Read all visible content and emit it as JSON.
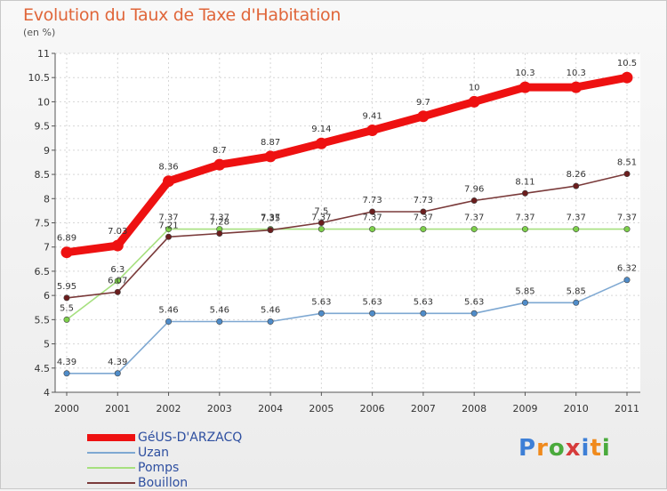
{
  "title": "Evolution du Taux de Taxe d'Habitation",
  "unit": "(en %)",
  "brand": {
    "text": "Proxiti",
    "letter_colors": [
      "#3d7fd6",
      "#f08a1c",
      "#4aaa3c",
      "#d63b3b",
      "#3d7fd6",
      "#f08a1c",
      "#4aaa3c"
    ]
  },
  "chart_data": {
    "type": "line",
    "x": [
      "2000",
      "2001",
      "2002",
      "2003",
      "2004",
      "2005",
      "2006",
      "2007",
      "2008",
      "2009",
      "2010",
      "2011"
    ],
    "ylim": [
      4,
      11
    ],
    "yticks": [
      "4",
      "4.5",
      "5",
      "5.5",
      "6",
      "6.5",
      "7",
      "7.5",
      "8",
      "8.5",
      "9",
      "9.5",
      "10",
      "10.5",
      "11"
    ],
    "grid": true,
    "legend_position": "bottom-left",
    "series": [
      {
        "name": "GéUS-D'ARZACQ",
        "color": "#ee1111",
        "values": [
          6.89,
          7.03,
          8.36,
          8.7,
          8.87,
          9.14,
          9.41,
          9.7,
          10,
          10.3,
          10.3,
          10.5
        ],
        "labels": [
          "6.89",
          "7.03",
          "8.36",
          "8.7",
          "8.87",
          "9.14",
          "9.41",
          "9.7",
          "10",
          "10.3",
          "10.3",
          "10.5"
        ]
      },
      {
        "name": "Uzan",
        "color": "#6c9fcf",
        "values": [
          4.39,
          4.39,
          5.46,
          5.46,
          5.46,
          5.63,
          5.63,
          5.63,
          5.63,
          5.85,
          5.85,
          6.32
        ],
        "labels": [
          "4.39",
          "4.39",
          "5.46",
          "5.46",
          "5.46",
          "5.63",
          "5.63",
          "5.63",
          "5.63",
          "5.85",
          "5.85",
          "6.32"
        ]
      },
      {
        "name": "Pomps",
        "color": "#93d86e",
        "values": [
          5.5,
          6.3,
          7.37,
          7.37,
          7.37,
          7.37,
          7.37,
          7.37,
          7.37,
          7.37,
          7.37,
          7.37
        ],
        "labels": [
          "5.5",
          "6.3",
          "7.37",
          "7.37",
          "7.37",
          "7.37",
          "7.37",
          "7.37",
          "7.37",
          "7.37",
          "7.37",
          "7.37"
        ]
      },
      {
        "name": "Bouillon",
        "color": "#7a3a3a",
        "values": [
          5.95,
          6.07,
          7.21,
          7.28,
          7.35,
          7.5,
          7.73,
          7.73,
          7.96,
          8.11,
          8.26,
          8.51
        ],
        "labels": [
          "5.95",
          "6.07",
          "7.21",
          "7.28",
          "7.35",
          "7.5",
          "7.73",
          "7.73",
          "7.96",
          "8.11",
          "8.26",
          "8.51"
        ]
      }
    ]
  }
}
